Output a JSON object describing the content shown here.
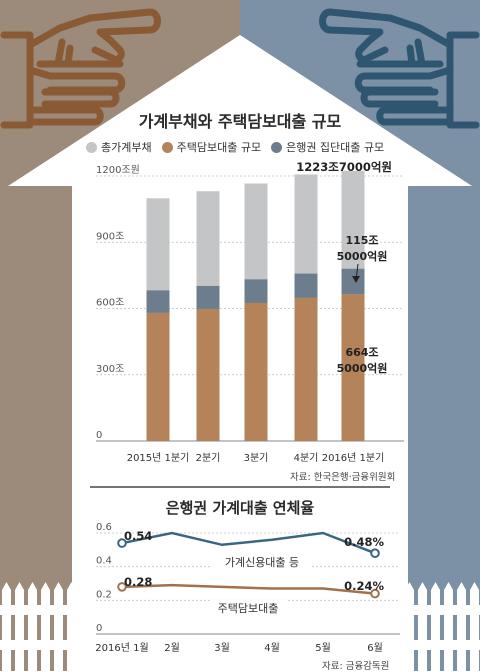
{
  "colors": {
    "left_panel": "#9c8a7a",
    "right_panel": "#7d91a6",
    "total_bar": "#c4c5c7",
    "mortgage_bar": "#b5835a",
    "group_loan_bar": "#6c7e8e",
    "line_credit": "#3b6680",
    "line_mortgage": "#a0714c",
    "hand_left": "#8a5a35",
    "hand_right": "#2f5670"
  },
  "icons": [
    "pointing-hand-left-icon",
    "pointing-hand-right-icon",
    "house-roof-icon",
    "picket-fence-icon"
  ],
  "chart1": {
    "title": "가계부채와 주택담보대출 규모",
    "legend": [
      {
        "label": "총가계부채",
        "color": "#c4c5c7"
      },
      {
        "label": "주택담보대출 규모",
        "color": "#b5835a"
      },
      {
        "label": "은행권 집단대출 규모",
        "color": "#6c7e8e"
      }
    ],
    "source": "자료: 한국은행·금융위원회"
  },
  "chart2": {
    "title": "은행권 가계대출 연체율",
    "source": "자료: 금융감독원"
  },
  "chart_data": [
    {
      "type": "bar",
      "categories": [
        "2015년 1분기",
        "2분기",
        "3분기",
        "4분기",
        "2016년 1분기"
      ],
      "series": [
        {
          "name": "총가계부채",
          "values": [
            1099,
            1131,
            1166,
            1207,
            1223.7
          ]
        },
        {
          "name": "주택담보대출 규모",
          "values": [
            580,
            598,
            625,
            648,
            664.5
          ]
        },
        {
          "name": "은행권 집단대출 규모",
          "values": [
            102,
            104,
            107,
            110,
            115.5
          ]
        }
      ],
      "y_ticks": [
        "1200조원",
        "900조",
        "600조",
        "300조",
        "0"
      ],
      "ylim": [
        0,
        1200
      ],
      "annotations": {
        "total_last": "1223조7000억원",
        "group_last_1": "115조",
        "group_last_2": "5000억원",
        "mortgage_last_1": "664조",
        "mortgage_last_2": "5000억원"
      }
    },
    {
      "type": "line",
      "categories": [
        "2016년 1월",
        "2월",
        "3월",
        "4월",
        "5월",
        "6월"
      ],
      "series": [
        {
          "name": "가계신용대출 등",
          "values": [
            0.54,
            0.6,
            0.53,
            0.56,
            0.6,
            0.48
          ]
        },
        {
          "name": "주택담보대출",
          "values": [
            0.28,
            0.29,
            0.28,
            0.27,
            0.27,
            0.24
          ]
        }
      ],
      "y_ticks": [
        "0.6",
        "0.4",
        "0.2",
        "0"
      ],
      "ylim": [
        0,
        0.6
      ],
      "data_labels": {
        "credit_first": "0.54",
        "credit_last": "0.48%",
        "mortgage_first": "0.28",
        "mortgage_last": "0.24%"
      }
    }
  ]
}
